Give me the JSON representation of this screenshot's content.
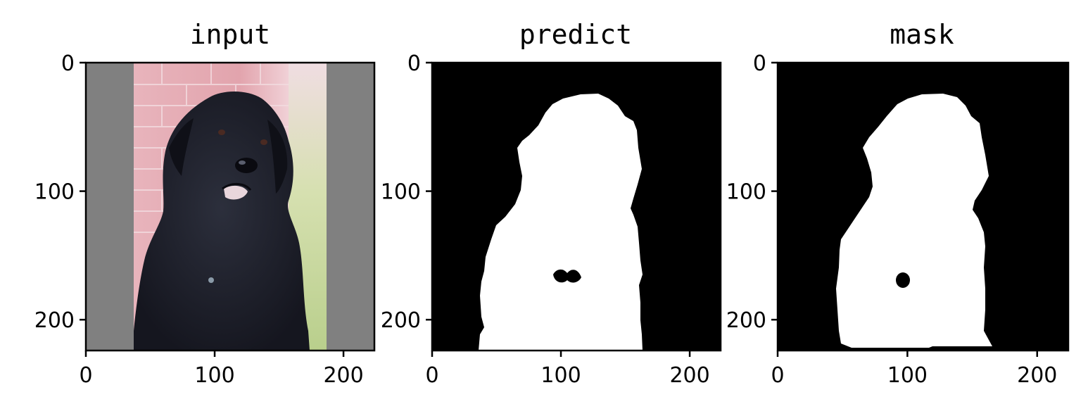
{
  "chart_data": [
    {
      "type": "image",
      "title": "input",
      "xlim": [
        0,
        224
      ],
      "ylim": [
        224,
        0
      ],
      "xticks": [
        "0",
        "100",
        "200"
      ],
      "yticks": [
        "0",
        "100",
        "200"
      ],
      "content": "photo of a black long-haired dog sitting in front of a red brick wall, letterboxed with gray padding"
    },
    {
      "type": "image",
      "title": "predict",
      "xlim": [
        0,
        224
      ],
      "ylim": [
        224,
        0
      ],
      "xticks": [
        "0",
        "100",
        "200"
      ],
      "yticks": [
        "0",
        "100",
        "200"
      ],
      "content": "binary segmentation mask (white dog silhouette on black)"
    },
    {
      "type": "image",
      "title": "mask",
      "xlim": [
        0,
        224
      ],
      "ylim": [
        224,
        0
      ],
      "xticks": [
        "0",
        "100",
        "200"
      ],
      "yticks": [
        "0",
        "100",
        "200"
      ],
      "content": "ground-truth binary mask (white dog silhouette on black)"
    }
  ],
  "colors": {
    "padding_gray": "#808080",
    "mask_fg": "#ffffff",
    "mask_bg": "#000000"
  }
}
